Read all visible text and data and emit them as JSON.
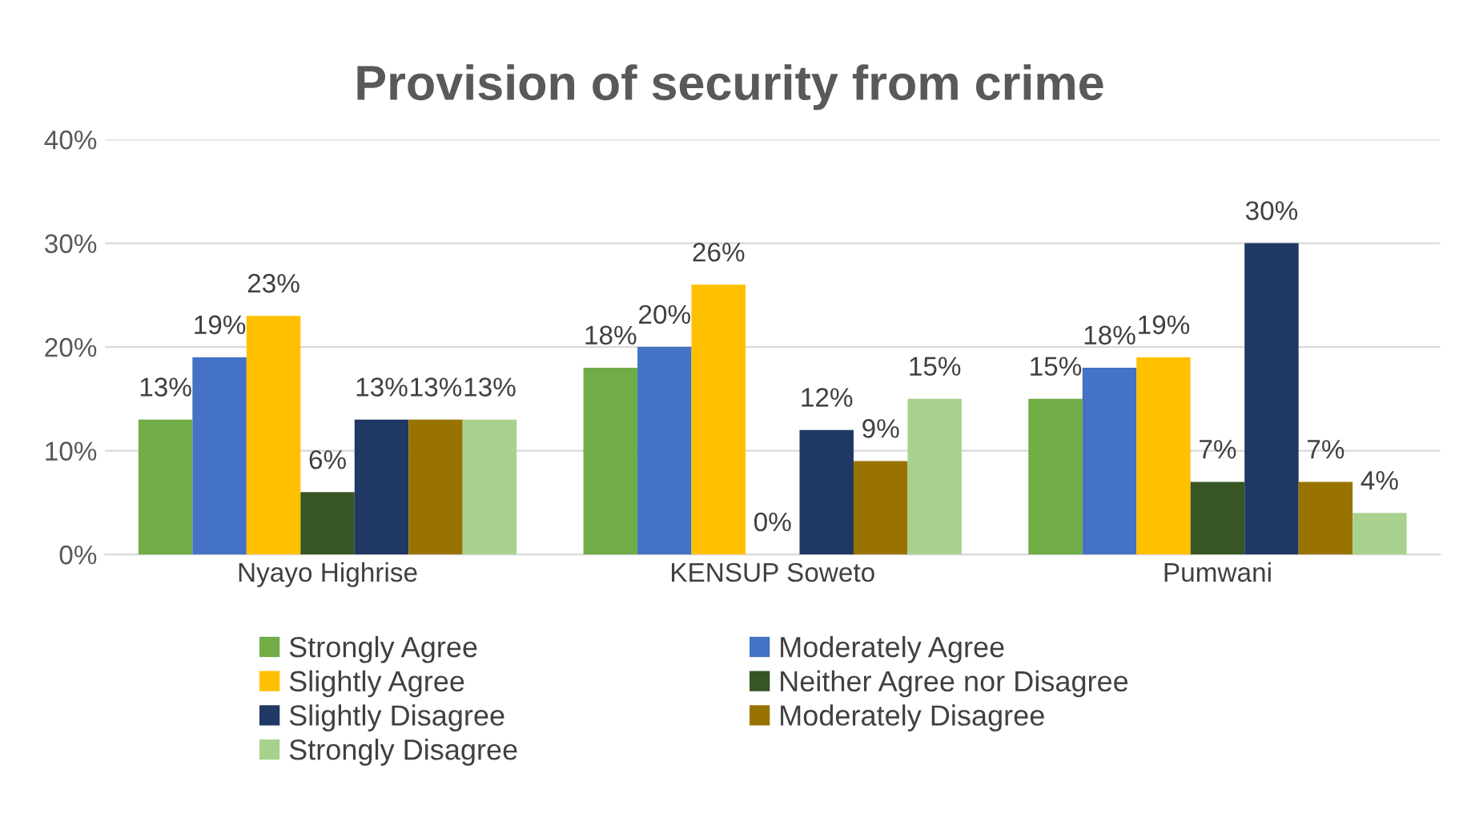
{
  "chart_data": {
    "type": "bar",
    "title": "Provision of security from crime",
    "categories": [
      "Nyayo Highrise",
      "KENSUP Soweto",
      "Pumwani"
    ],
    "series": [
      {
        "name": "Strongly Agree",
        "color": "#70ad47",
        "values": [
          13,
          18,
          15
        ],
        "value_labels": [
          "13%",
          "18%",
          "15%"
        ]
      },
      {
        "name": "Moderately Agree",
        "color": "#4472c4",
        "values": [
          19,
          20,
          18
        ],
        "value_labels": [
          "19%",
          "20%",
          "18%"
        ]
      },
      {
        "name": "Slightly Agree",
        "color": "#ffc000",
        "values": [
          23,
          26,
          19
        ],
        "value_labels": [
          "23%",
          "26%",
          "19%"
        ]
      },
      {
        "name": "Neither Agree nor Disagree",
        "color": "#375623",
        "values": [
          6,
          0,
          7
        ],
        "value_labels": [
          "6%",
          "0%",
          "7%"
        ]
      },
      {
        "name": "Slightly Disagree",
        "color": "#203864",
        "values": [
          13,
          12,
          30
        ],
        "value_labels": [
          "13%",
          "12%",
          "30%"
        ]
      },
      {
        "name": "Moderately Disagree",
        "color": "#997300",
        "values": [
          13,
          9,
          7
        ],
        "value_labels": [
          "13%",
          "9%",
          "7%"
        ]
      },
      {
        "name": "Strongly Disagree",
        "color": "#a9d18e",
        "values": [
          13,
          15,
          4
        ],
        "value_labels": [
          "13%",
          "15%",
          "4%"
        ]
      }
    ],
    "ylim": [
      0,
      40
    ],
    "yticks": [
      {
        "value": 0,
        "label": "0%"
      },
      {
        "value": 10,
        "label": "10%"
      },
      {
        "value": 20,
        "label": "20%"
      },
      {
        "value": 30,
        "label": "30%"
      },
      {
        "value": 40,
        "label": "40%"
      }
    ],
    "grid": "y",
    "legend": "bottom"
  }
}
